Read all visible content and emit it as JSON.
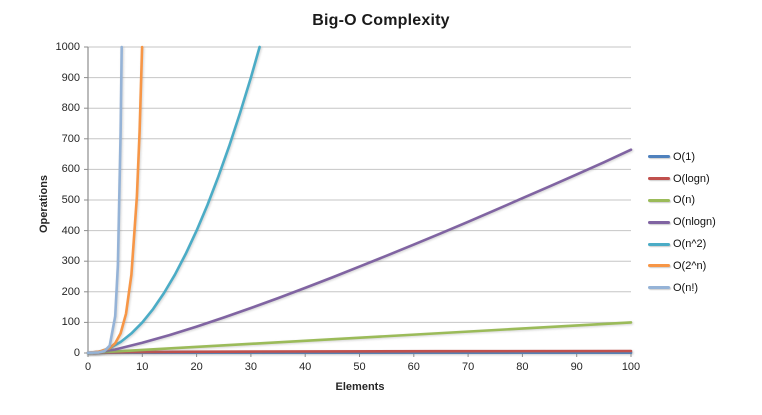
{
  "title": "Big-O Complexity",
  "colors": {
    "grid": "#C6C6C6",
    "axis": "#8E8E8E",
    "tick": "#A9A9A9",
    "text": "#262626",
    "background": "#FFFFFF"
  },
  "chart_data": {
    "type": "line",
    "title": "Big-O Complexity",
    "xlabel": "Elements",
    "ylabel": "Operations",
    "xlim": [
      0,
      100
    ],
    "ylim": [
      0,
      1000
    ],
    "x_ticks": [
      0,
      10,
      20,
      30,
      40,
      50,
      60,
      70,
      80,
      90,
      100
    ],
    "y_ticks": [
      0,
      100,
      200,
      300,
      400,
      500,
      600,
      700,
      800,
      900,
      1000
    ],
    "grid": "horizontal",
    "legend_position": "right",
    "series": [
      {
        "name": "O(1)",
        "color": "#4F81BD",
        "points": [
          [
            0,
            1
          ],
          [
            100,
            1
          ]
        ]
      },
      {
        "name": "O(logn)",
        "color": "#C0504D",
        "points": [
          [
            1,
            0
          ],
          [
            2,
            1
          ],
          [
            4,
            2
          ],
          [
            8,
            3
          ],
          [
            16,
            4
          ],
          [
            32,
            5
          ],
          [
            64,
            6
          ],
          [
            100,
            6.6
          ]
        ]
      },
      {
        "name": "O(n)",
        "color": "#9BBB59",
        "points": [
          [
            0,
            0
          ],
          [
            100,
            100
          ]
        ]
      },
      {
        "name": "O(nlogn)",
        "color": "#8064A2",
        "points": [
          [
            0,
            0
          ],
          [
            5,
            11.6
          ],
          [
            10,
            33.2
          ],
          [
            15,
            58.6
          ],
          [
            20,
            86.4
          ],
          [
            25,
            116.1
          ],
          [
            30,
            147.2
          ],
          [
            35,
            179.5
          ],
          [
            40,
            212.9
          ],
          [
            45,
            247.2
          ],
          [
            50,
            282.2
          ],
          [
            55,
            317.9
          ],
          [
            60,
            354.4
          ],
          [
            65,
            391.3
          ],
          [
            70,
            428.8
          ],
          [
            75,
            466.9
          ],
          [
            80,
            505.8
          ],
          [
            85,
            544.4
          ],
          [
            90,
            583.6
          ],
          [
            95,
            623.3
          ],
          [
            100,
            664.4
          ]
        ]
      },
      {
        "name": "O(n^2)",
        "color": "#4BACC6",
        "points": [
          [
            0,
            0
          ],
          [
            2,
            4
          ],
          [
            4,
            16
          ],
          [
            6,
            36
          ],
          [
            8,
            64
          ],
          [
            10,
            100
          ],
          [
            12,
            144
          ],
          [
            14,
            196
          ],
          [
            16,
            256
          ],
          [
            18,
            324
          ],
          [
            20,
            400
          ],
          [
            22,
            484
          ],
          [
            24,
            576
          ],
          [
            26,
            676
          ],
          [
            28,
            784
          ],
          [
            30,
            900
          ],
          [
            31.6,
            1000
          ]
        ]
      },
      {
        "name": "O(2^n)",
        "color": "#F79646",
        "points": [
          [
            0,
            1
          ],
          [
            2,
            4
          ],
          [
            4,
            16
          ],
          [
            5,
            32
          ],
          [
            6,
            64
          ],
          [
            7,
            128
          ],
          [
            8,
            256
          ],
          [
            9,
            512
          ],
          [
            9.5,
            724
          ],
          [
            9.97,
            1000
          ]
        ]
      },
      {
        "name": "O(n!)",
        "color": "#95B3D7",
        "points": [
          [
            0,
            1
          ],
          [
            2,
            2
          ],
          [
            3,
            6
          ],
          [
            4,
            24
          ],
          [
            5,
            120
          ],
          [
            5.5,
            288
          ],
          [
            6,
            720
          ],
          [
            6.2,
            1000
          ]
        ]
      }
    ]
  }
}
